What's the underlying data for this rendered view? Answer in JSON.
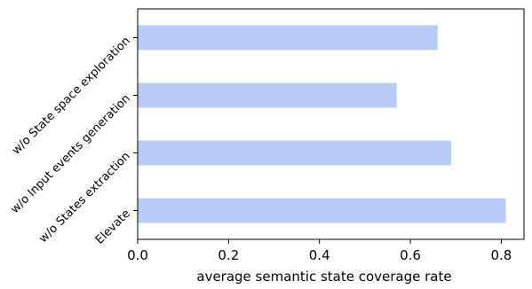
{
  "chart_data": {
    "type": "bar",
    "orientation": "horizontal",
    "categories": [
      "Elevate",
      "w/o States extraction",
      "w/o Input events generation",
      "w/o State space exploration"
    ],
    "values": [
      0.81,
      0.69,
      0.57,
      0.66
    ],
    "xlabel": "average semantic state coverage rate",
    "ylabel": "",
    "title": "",
    "xlim": [
      0.0,
      0.85
    ],
    "xticks": [
      0.0,
      0.2,
      0.4,
      0.6,
      0.8
    ],
    "xtick_labels": [
      "0.0",
      "0.2",
      "0.4",
      "0.6",
      "0.8"
    ],
    "bar_color": "#b7cdf7",
    "grid": false,
    "legend": "none"
  }
}
